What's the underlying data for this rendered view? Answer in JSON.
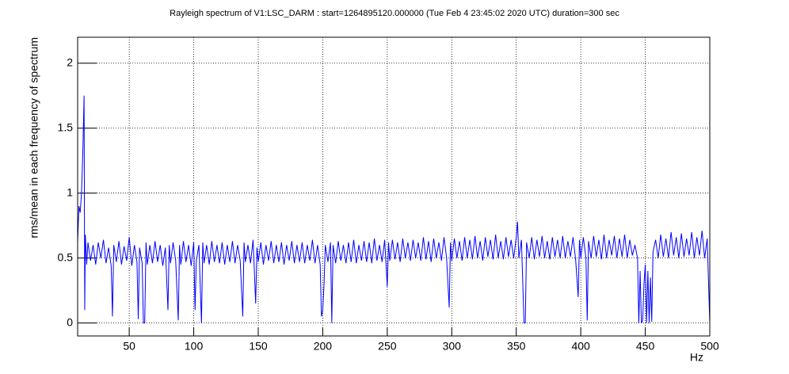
{
  "chart_data": {
    "type": "line",
    "title": "Rayleigh spectrum of V1:LSC_DARM : start=1264895120.000000 (Tue Feb  4 23:45:02 2020 UTC) duration=300 sec",
    "xlabel": "Hz",
    "ylabel": "rms/mean in each frequency of spectrum",
    "xlim": [
      10,
      500
    ],
    "ylim": [
      -0.1,
      2.2
    ],
    "xticks": [
      50,
      100,
      150,
      200,
      250,
      300,
      350,
      400,
      450,
      500
    ],
    "yticks": [
      0,
      0.5,
      1,
      1.5,
      2
    ],
    "grid": true,
    "x": [
      10,
      11,
      12,
      13,
      14,
      15,
      15.5,
      16,
      17,
      18,
      20,
      22,
      24,
      26,
      28,
      30,
      32,
      34,
      36,
      37,
      38,
      40,
      42,
      44,
      46,
      48,
      50,
      52,
      54,
      56,
      57,
      58,
      60,
      61,
      62,
      63,
      64,
      66,
      68,
      70,
      72,
      74,
      76,
      78,
      80,
      81,
      82,
      84,
      86,
      88,
      89,
      90,
      92,
      94,
      96,
      98,
      100,
      101,
      102,
      104,
      106,
      107,
      108,
      110,
      112,
      114,
      116,
      118,
      120,
      122,
      124,
      126,
      128,
      130,
      132,
      134,
      136,
      138,
      139,
      140,
      142,
      144,
      146,
      148,
      149,
      150,
      152,
      154,
      156,
      158,
      160,
      162,
      164,
      166,
      168,
      170,
      172,
      174,
      176,
      178,
      180,
      182,
      184,
      186,
      188,
      190,
      192,
      194,
      196,
      198,
      199,
      200,
      201,
      202,
      204,
      206,
      207,
      208,
      210,
      212,
      214,
      216,
      218,
      220,
      222,
      224,
      226,
      228,
      230,
      232,
      234,
      236,
      238,
      240,
      242,
      244,
      246,
      248,
      250,
      251,
      252,
      254,
      256,
      258,
      260,
      262,
      264,
      266,
      268,
      270,
      272,
      274,
      276,
      278,
      280,
      282,
      284,
      286,
      288,
      290,
      292,
      294,
      296,
      298,
      299,
      300,
      302,
      304,
      306,
      308,
      310,
      312,
      314,
      316,
      318,
      320,
      322,
      324,
      326,
      328,
      330,
      332,
      334,
      336,
      338,
      340,
      342,
      344,
      346,
      348,
      350,
      351,
      352,
      354,
      356,
      357,
      358,
      360,
      362,
      364,
      366,
      368,
      370,
      372,
      374,
      376,
      378,
      380,
      382,
      384,
      386,
      388,
      390,
      392,
      394,
      396,
      398,
      399,
      400,
      402,
      404,
      405,
      406,
      408,
      410,
      412,
      414,
      416,
      418,
      420,
      422,
      424,
      426,
      428,
      430,
      432,
      434,
      436,
      438,
      440,
      442,
      444,
      445,
      446,
      447,
      448,
      449,
      450,
      451,
      452,
      453,
      454,
      455,
      456,
      458,
      460,
      462,
      464,
      466,
      468,
      470,
      472,
      474,
      476,
      478,
      480,
      482,
      484,
      486,
      488,
      490,
      492,
      494,
      496,
      498,
      500
    ],
    "series": [
      {
        "color": "#0000ff",
        "values": [
          0.62,
          0.9,
          0.85,
          1.0,
          1.3,
          1.75,
          0.1,
          0.68,
          0.45,
          0.62,
          0.48,
          0.6,
          0.45,
          0.62,
          0.5,
          0.64,
          0.46,
          0.58,
          0.44,
          0.05,
          0.6,
          0.47,
          0.63,
          0.45,
          0.59,
          0.48,
          0.66,
          0.44,
          0.6,
          0.47,
          0.03,
          0.58,
          0.46,
          0.0,
          0.0,
          0.62,
          0.45,
          0.6,
          0.46,
          0.63,
          0.47,
          0.6,
          0.44,
          0.58,
          0.1,
          0.6,
          0.46,
          0.62,
          0.48,
          0.02,
          0.6,
          0.45,
          0.63,
          0.47,
          0.6,
          0.44,
          0.62,
          0.1,
          0.48,
          0.6,
          0.0,
          0.62,
          0.46,
          0.6,
          0.45,
          0.63,
          0.47,
          0.6,
          0.46,
          0.62,
          0.45,
          0.6,
          0.47,
          0.63,
          0.46,
          0.6,
          0.48,
          0.05,
          0.62,
          0.47,
          0.6,
          0.46,
          0.64,
          0.15,
          0.58,
          0.47,
          0.62,
          0.45,
          0.6,
          0.48,
          0.63,
          0.46,
          0.6,
          0.47,
          0.62,
          0.45,
          0.6,
          0.48,
          0.63,
          0.46,
          0.6,
          0.47,
          0.62,
          0.46,
          0.6,
          0.48,
          0.64,
          0.46,
          0.6,
          0.45,
          0.05,
          0.1,
          0.3,
          0.6,
          0.47,
          0.62,
          0.0,
          0.6,
          0.46,
          0.63,
          0.48,
          0.6,
          0.46,
          0.62,
          0.47,
          0.64,
          0.46,
          0.6,
          0.48,
          0.63,
          0.47,
          0.62,
          0.46,
          0.65,
          0.48,
          0.6,
          0.47,
          0.64,
          0.28,
          0.62,
          0.48,
          0.64,
          0.49,
          0.62,
          0.47,
          0.65,
          0.5,
          0.62,
          0.48,
          0.64,
          0.5,
          0.62,
          0.48,
          0.66,
          0.49,
          0.63,
          0.47,
          0.65,
          0.5,
          0.62,
          0.48,
          0.66,
          0.5,
          0.12,
          0.62,
          0.48,
          0.65,
          0.5,
          0.63,
          0.48,
          0.66,
          0.5,
          0.64,
          0.49,
          0.67,
          0.5,
          0.63,
          0.48,
          0.66,
          0.51,
          0.64,
          0.49,
          0.68,
          0.5,
          0.63,
          0.49,
          0.66,
          0.51,
          0.64,
          0.5,
          0.66,
          0.78,
          0.5,
          0.64,
          0.0,
          0.0,
          0.62,
          0.5,
          0.66,
          0.49,
          0.64,
          0.51,
          0.67,
          0.5,
          0.63,
          0.49,
          0.66,
          0.51,
          0.64,
          0.5,
          0.67,
          0.5,
          0.63,
          0.51,
          0.66,
          0.49,
          0.2,
          0.64,
          0.5,
          0.66,
          0.5,
          0.02,
          0.63,
          0.5,
          0.67,
          0.51,
          0.64,
          0.49,
          0.68,
          0.5,
          0.64,
          0.52,
          0.67,
          0.5,
          0.65,
          0.51,
          0.68,
          0.5,
          0.64,
          0.52,
          0.6,
          0.5,
          0.0,
          0.4,
          0.0,
          0.02,
          0.3,
          0.45,
          0.0,
          0.4,
          0.0,
          0.35,
          0.01,
          0.55,
          0.64,
          0.5,
          0.68,
          0.51,
          0.65,
          0.5,
          0.7,
          0.52,
          0.66,
          0.5,
          0.69,
          0.51,
          0.65,
          0.52,
          0.7,
          0.5,
          0.66,
          0.52,
          0.71,
          0.5,
          0.65,
          0.0
        ]
      }
    ]
  }
}
